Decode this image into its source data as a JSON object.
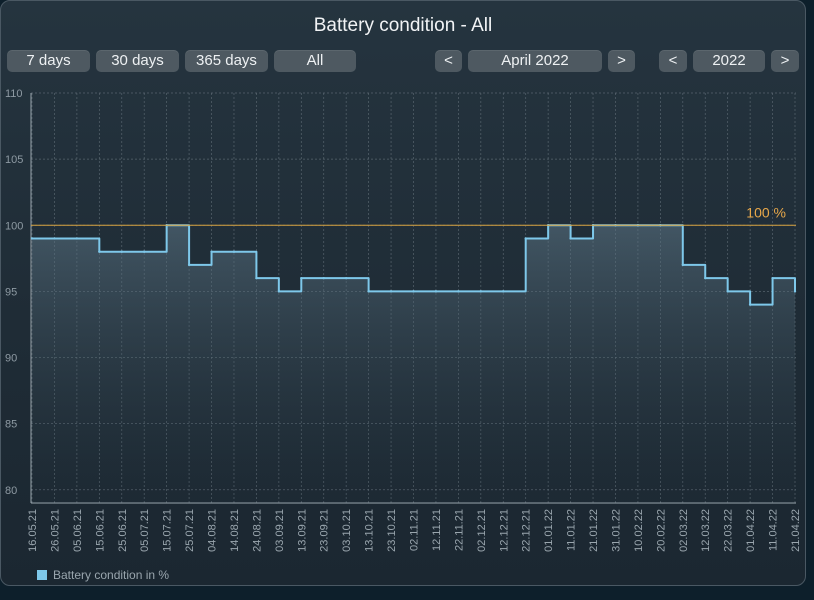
{
  "title": "Battery condition - All",
  "range_buttons": [
    "7 days",
    "30 days",
    "365 days",
    "All"
  ],
  "month_nav": {
    "prev": "<",
    "label": "April 2022",
    "next": ">"
  },
  "year_nav": {
    "prev": "<",
    "label": "2022",
    "next": ">"
  },
  "colors": {
    "line": "#7ec8ea",
    "reference": "#d9a441",
    "reference_text": "#e8a84a"
  },
  "chart_data": {
    "type": "line",
    "title": "Battery condition - All",
    "xlabel": "",
    "ylabel": "",
    "ylim": [
      79,
      110
    ],
    "yticks": [
      80,
      85,
      90,
      95,
      100,
      105,
      110
    ],
    "grid": true,
    "legend_position": "bottom-left",
    "reference_line": {
      "value": 100,
      "label": "100 %"
    },
    "categories": [
      "16.05.21",
      "26.05.21",
      "05.06.21",
      "15.06.21",
      "25.06.21",
      "05.07.21",
      "15.07.21",
      "25.07.21",
      "04.08.21",
      "14.08.21",
      "24.08.21",
      "03.09.21",
      "13.09.21",
      "23.09.21",
      "03.10.21",
      "13.10.21",
      "23.10.21",
      "02.11.21",
      "12.11.21",
      "22.11.21",
      "02.12.21",
      "12.12.21",
      "22.12.21",
      "01.01.22",
      "11.01.22",
      "21.01.22",
      "31.01.22",
      "10.02.22",
      "20.02.22",
      "02.03.22",
      "12.03.22",
      "22.03.22",
      "01.04.22",
      "11.04.22",
      "21.04.22"
    ],
    "series": [
      {
        "name": "Battery condition in %",
        "values": [
          99,
          99,
          99,
          98,
          98,
          98,
          100,
          97,
          98,
          98,
          96,
          95,
          96,
          96,
          96,
          95,
          95,
          95,
          95,
          95,
          95,
          95,
          99,
          100,
          99,
          100,
          100,
          100,
          100,
          97,
          96,
          95,
          94,
          96,
          95
        ]
      }
    ]
  }
}
